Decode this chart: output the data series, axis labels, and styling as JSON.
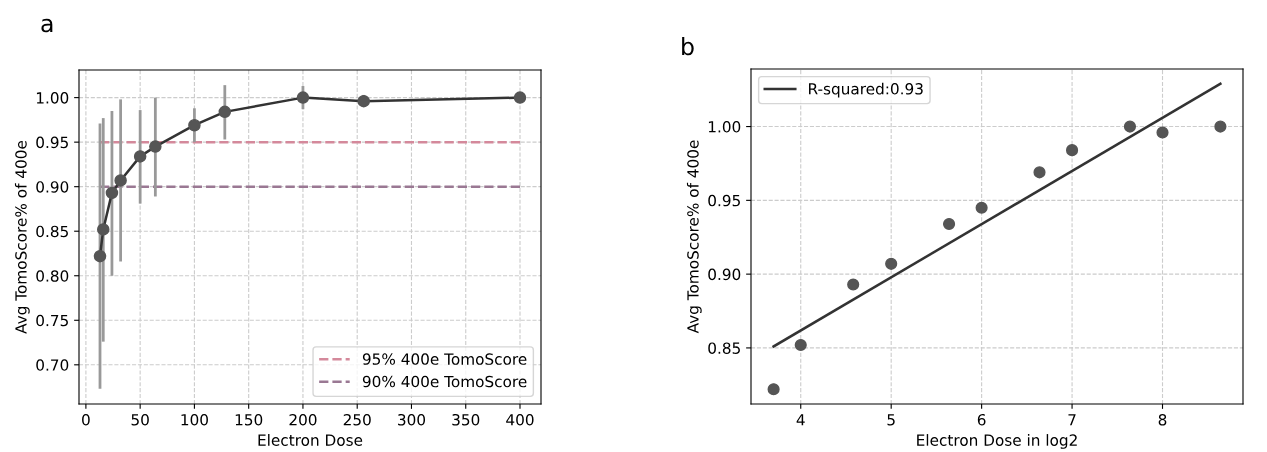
{
  "chart_data": [
    {
      "type": "line",
      "annotations": [
        "a"
      ],
      "xlabel": "Electron Dose",
      "ylabel": "Avg TomoScore% of 400e",
      "x": [
        13,
        16,
        24,
        32,
        50,
        64,
        100,
        128,
        200,
        256,
        400
      ],
      "series": [
        {
          "color": "#333333",
          "values": [
            0.822,
            0.852,
            0.893,
            0.907,
            0.934,
            0.945,
            0.969,
            0.984,
            1.0,
            0.996,
            1.0
          ],
          "errors": [
            [
              0.673,
              0.971
            ],
            [
              0.726,
              0.977
            ],
            [
              0.8,
              0.985
            ],
            [
              0.816,
              0.998
            ],
            [
              0.881,
              0.986
            ],
            [
              0.889,
              1.0
            ],
            [
              0.95,
              0.988
            ],
            [
              0.953,
              1.014
            ],
            [
              0.987,
              1.013
            ],
            [
              0.99,
              1.003
            ],
            null
          ]
        }
      ],
      "ref_lines": [
        {
          "axis": "y",
          "value": 0.95,
          "label": "95% 400e TomoScore",
          "color": "#d4899b",
          "line_style": "dashed"
        },
        {
          "axis": "y",
          "value": 0.9,
          "label": "90% 400e TomoScore",
          "color": "#9a7893",
          "line_style": "dashed"
        }
      ],
      "marker": "circle",
      "grid": true,
      "legend": "bottom right",
      "xlim": [
        -6.35,
        419.35
      ],
      "xticks": [
        0,
        50,
        100,
        150,
        200,
        250,
        300,
        350,
        400
      ],
      "ylim": [
        0.656,
        1.031
      ],
      "yticks": [
        {
          "value": 0.7,
          "label": "0.70"
        },
        {
          "value": 0.75,
          "label": "0.75"
        },
        {
          "value": 0.8,
          "label": "0.80"
        },
        {
          "value": 0.85,
          "label": "0.85"
        },
        {
          "value": 0.9,
          "label": "0.90"
        },
        {
          "value": 0.95,
          "label": "0.95"
        },
        {
          "value": 1.0,
          "label": "1.00"
        }
      ]
    },
    {
      "type": "scatter",
      "annotations": [
        "b"
      ],
      "xlabel": "Electron Dose in log2",
      "ylabel": "Avg TomoScore% of 400e",
      "x": [
        3.7,
        4.0,
        4.58,
        5.0,
        5.64,
        6.0,
        6.64,
        7.0,
        7.64,
        8.0,
        8.64
      ],
      "series": [
        {
          "color": "#555555",
          "values": [
            0.822,
            0.852,
            0.893,
            0.907,
            0.934,
            0.945,
            0.969,
            0.984,
            1.0,
            0.996,
            1.0
          ]
        },
        {
          "type": "line",
          "name": "R-squared:0.93",
          "marker": "none",
          "color": "#333333",
          "x": [
            3.7,
            8.64
          ],
          "values": [
            0.851,
            1.029
          ]
        }
      ],
      "marker": "circle",
      "grid": true,
      "legend": "top left",
      "xlim": [
        3.45,
        8.89
      ],
      "xticks": [
        4,
        5,
        6,
        7,
        8
      ],
      "ylim": [
        0.812,
        1.039
      ],
      "yticks": [
        {
          "value": 0.85,
          "label": "0.85"
        },
        {
          "value": 0.9,
          "label": "0.90"
        },
        {
          "value": 0.95,
          "label": "0.95"
        },
        {
          "value": 1.0,
          "label": "1.00"
        }
      ]
    }
  ]
}
